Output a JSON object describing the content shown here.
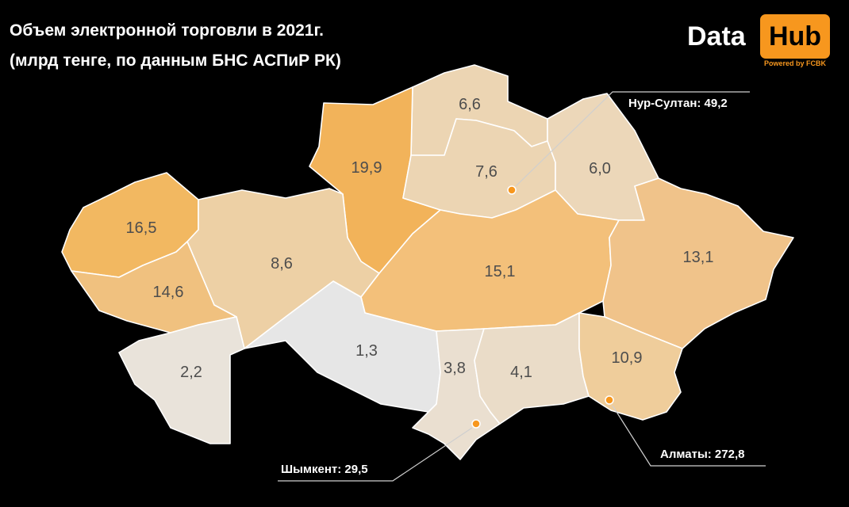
{
  "title": {
    "line1": "Объем электронной торговли в 2021г.",
    "line2": "(млрд тенге, по данным БНС АСПиР РК)"
  },
  "logo": {
    "data_text": "Data",
    "hub_text": "Hub",
    "powered_text": "Powered by FCBK",
    "accent_color": "#f7971e"
  },
  "regions": [
    {
      "value": "6,6",
      "color": "#ecd5b3"
    },
    {
      "value": "19,9",
      "color": "#f2b35a"
    },
    {
      "value": "7,6",
      "color": "#ecd5b3"
    },
    {
      "value": "6,0",
      "color": "#ecd7b9"
    },
    {
      "value": "16,5",
      "color": "#f2b861"
    },
    {
      "value": "8,6",
      "color": "#edd0a5"
    },
    {
      "value": "15,1",
      "color": "#f3c07a"
    },
    {
      "value": "13,1",
      "color": "#f0c38a"
    },
    {
      "value": "14,6",
      "color": "#f0c17f"
    },
    {
      "value": "1,3",
      "color": "#e6e6e6"
    },
    {
      "value": "2,2",
      "color": "#e9e3da"
    },
    {
      "value": "3,8",
      "color": "#eadfd0"
    },
    {
      "value": "4,1",
      "color": "#eadcc8"
    },
    {
      "value": "10,9",
      "color": "#efcd9b"
    }
  ],
  "cities": [
    {
      "label": "Нур-Султан: 49,2"
    },
    {
      "label": "Алматы: 272,8"
    },
    {
      "label": "Шымкент: 29,5"
    }
  ]
}
